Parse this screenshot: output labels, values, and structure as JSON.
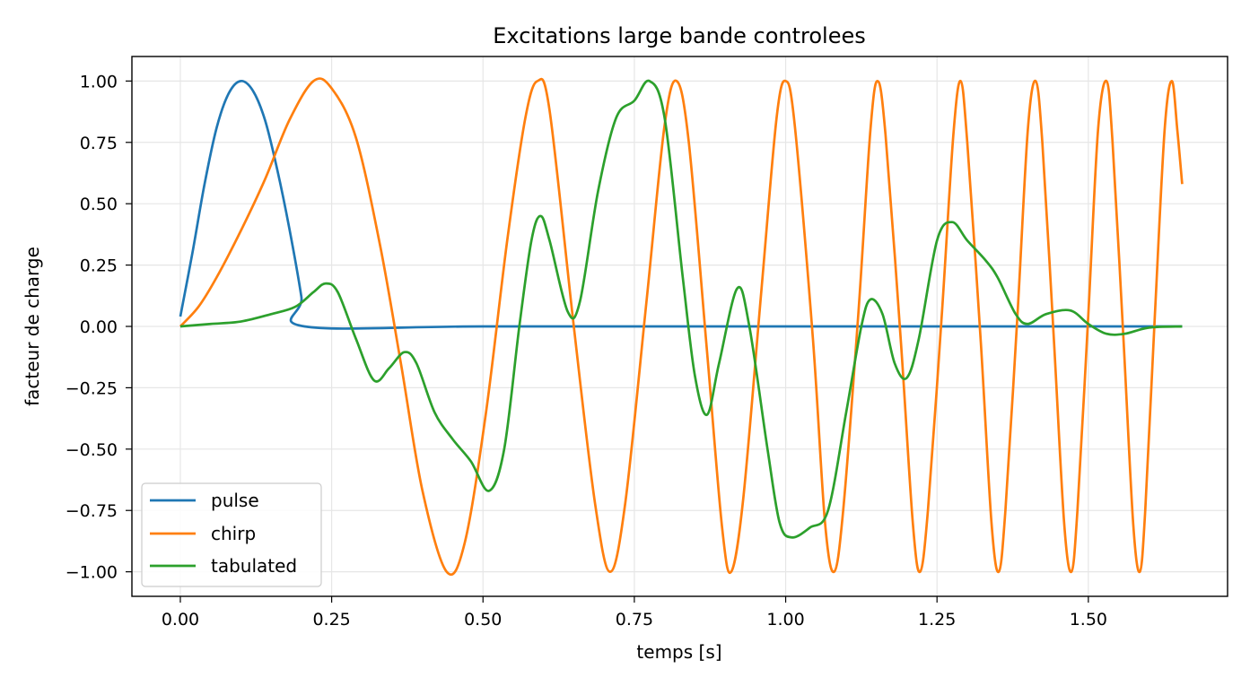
{
  "chart_data": {
    "type": "line",
    "title": "Excitations large bande controlees",
    "xlabel": "temps [s]",
    "ylabel": "facteur de charge",
    "xlim": [
      -0.08,
      1.73
    ],
    "ylim": [
      -1.1,
      1.1
    ],
    "xticks": [
      0.0,
      0.25,
      0.5,
      0.75,
      1.0,
      1.25,
      1.5
    ],
    "xtick_labels": [
      "0.00",
      "0.25",
      "0.50",
      "0.75",
      "1.00",
      "1.25",
      "1.50"
    ],
    "yticks": [
      1.0,
      0.75,
      0.5,
      0.25,
      0.0,
      -0.25,
      -0.5,
      -0.75,
      -1.0
    ],
    "ytick_labels": [
      "1.00",
      "0.75",
      "0.50",
      "0.25",
      "0.00",
      "−0.25",
      "−0.50",
      "−0.75",
      "−1.00"
    ],
    "grid": true,
    "legend_position": "lower-left",
    "series": [
      {
        "name": "pulse",
        "color": "#1f77b4",
        "points": [
          [
            0.0,
            0.04
          ],
          [
            0.02,
            0.3
          ],
          [
            0.04,
            0.58
          ],
          [
            0.06,
            0.81
          ],
          [
            0.08,
            0.95
          ],
          [
            0.1,
            1.0
          ],
          [
            0.12,
            0.96
          ],
          [
            0.14,
            0.84
          ],
          [
            0.16,
            0.64
          ],
          [
            0.18,
            0.4
          ],
          [
            0.2,
            0.12
          ],
          [
            0.205,
            0.0
          ],
          [
            0.5,
            0.0
          ],
          [
            1.0,
            0.0
          ],
          [
            1.5,
            0.0
          ],
          [
            1.655,
            0.0
          ]
        ]
      },
      {
        "name": "chirp",
        "color": "#ff7f0e",
        "points": [
          [
            0.0,
            0.0
          ],
          [
            0.03,
            0.08
          ],
          [
            0.06,
            0.2
          ],
          [
            0.1,
            0.39
          ],
          [
            0.14,
            0.6
          ],
          [
            0.18,
            0.84
          ],
          [
            0.22,
            1.0
          ],
          [
            0.25,
            0.97
          ],
          [
            0.29,
            0.77
          ],
          [
            0.33,
            0.33
          ],
          [
            0.365,
            -0.16
          ],
          [
            0.4,
            -0.67
          ],
          [
            0.44,
            -1.0
          ],
          [
            0.47,
            -0.88
          ],
          [
            0.505,
            -0.35
          ],
          [
            0.54,
            0.35
          ],
          [
            0.57,
            0.85
          ],
          [
            0.59,
            1.0
          ],
          [
            0.61,
            0.88
          ],
          [
            0.65,
            0.0
          ],
          [
            0.685,
            -0.72
          ],
          [
            0.71,
            -1.0
          ],
          [
            0.735,
            -0.72
          ],
          [
            0.77,
            0.1
          ],
          [
            0.8,
            0.82
          ],
          [
            0.82,
            1.0
          ],
          [
            0.84,
            0.75
          ],
          [
            0.87,
            -0.1
          ],
          [
            0.895,
            -0.82
          ],
          [
            0.91,
            -1.0
          ],
          [
            0.93,
            -0.7
          ],
          [
            0.96,
            0.15
          ],
          [
            0.985,
            0.85
          ],
          [
            1.0,
            1.0
          ],
          [
            1.015,
            0.82
          ],
          [
            1.045,
            -0.05
          ],
          [
            1.065,
            -0.8
          ],
          [
            1.08,
            -1.0
          ],
          [
            1.095,
            -0.75
          ],
          [
            1.12,
            0.05
          ],
          [
            1.14,
            0.8
          ],
          [
            1.152,
            1.0
          ],
          [
            1.165,
            0.78
          ],
          [
            1.19,
            -0.05
          ],
          [
            1.21,
            -0.8
          ],
          [
            1.222,
            -1.0
          ],
          [
            1.235,
            -0.75
          ],
          [
            1.258,
            0.05
          ],
          [
            1.277,
            0.78
          ],
          [
            1.289,
            1.0
          ],
          [
            1.3,
            0.75
          ],
          [
            1.322,
            -0.05
          ],
          [
            1.34,
            -0.8
          ],
          [
            1.352,
            -1.0
          ],
          [
            1.363,
            -0.75
          ],
          [
            1.383,
            0.05
          ],
          [
            1.4,
            0.8
          ],
          [
            1.413,
            1.0
          ],
          [
            1.424,
            0.75
          ],
          [
            1.443,
            -0.05
          ],
          [
            1.46,
            -0.8
          ],
          [
            1.472,
            -1.0
          ],
          [
            1.482,
            -0.75
          ],
          [
            1.5,
            0.05
          ],
          [
            1.516,
            0.8
          ],
          [
            1.53,
            1.0
          ],
          [
            1.54,
            0.75
          ],
          [
            1.558,
            -0.05
          ],
          [
            1.574,
            -0.8
          ],
          [
            1.585,
            -1.0
          ],
          [
            1.594,
            -0.75
          ],
          [
            1.61,
            0.05
          ],
          [
            1.626,
            0.8
          ],
          [
            1.638,
            1.0
          ],
          [
            1.647,
            0.8
          ],
          [
            1.655,
            0.58
          ]
        ]
      },
      {
        "name": "tabulated",
        "color": "#2ca02c",
        "points": [
          [
            0.0,
            0.0
          ],
          [
            0.05,
            0.01
          ],
          [
            0.1,
            0.02
          ],
          [
            0.15,
            0.05
          ],
          [
            0.19,
            0.08
          ],
          [
            0.22,
            0.14
          ],
          [
            0.24,
            0.175
          ],
          [
            0.26,
            0.14
          ],
          [
            0.29,
            -0.05
          ],
          [
            0.32,
            -0.22
          ],
          [
            0.345,
            -0.17
          ],
          [
            0.37,
            -0.105
          ],
          [
            0.39,
            -0.15
          ],
          [
            0.42,
            -0.35
          ],
          [
            0.45,
            -0.46
          ],
          [
            0.48,
            -0.55
          ],
          [
            0.51,
            -0.67
          ],
          [
            0.535,
            -0.5
          ],
          [
            0.56,
            0.0
          ],
          [
            0.58,
            0.35
          ],
          [
            0.595,
            0.45
          ],
          [
            0.61,
            0.35
          ],
          [
            0.64,
            0.06
          ],
          [
            0.66,
            0.1
          ],
          [
            0.69,
            0.55
          ],
          [
            0.72,
            0.85
          ],
          [
            0.75,
            0.92
          ],
          [
            0.775,
            1.0
          ],
          [
            0.8,
            0.85
          ],
          [
            0.83,
            0.2
          ],
          [
            0.85,
            -0.2
          ],
          [
            0.87,
            -0.36
          ],
          [
            0.89,
            -0.15
          ],
          [
            0.92,
            0.155
          ],
          [
            0.94,
            0.0
          ],
          [
            0.97,
            -0.5
          ],
          [
            0.99,
            -0.8
          ],
          [
            1.01,
            -0.86
          ],
          [
            1.04,
            -0.82
          ],
          [
            1.07,
            -0.75
          ],
          [
            1.1,
            -0.35
          ],
          [
            1.125,
            0.0
          ],
          [
            1.14,
            0.11
          ],
          [
            1.16,
            0.05
          ],
          [
            1.18,
            -0.15
          ],
          [
            1.2,
            -0.21
          ],
          [
            1.22,
            -0.05
          ],
          [
            1.25,
            0.35
          ],
          [
            1.275,
            0.425
          ],
          [
            1.3,
            0.35
          ],
          [
            1.33,
            0.27
          ],
          [
            1.35,
            0.2
          ],
          [
            1.38,
            0.05
          ],
          [
            1.4,
            0.01
          ],
          [
            1.43,
            0.05
          ],
          [
            1.47,
            0.065
          ],
          [
            1.5,
            0.01
          ],
          [
            1.53,
            -0.03
          ],
          [
            1.56,
            -0.03
          ],
          [
            1.6,
            -0.005
          ],
          [
            1.655,
            0.0
          ]
        ]
      }
    ]
  }
}
